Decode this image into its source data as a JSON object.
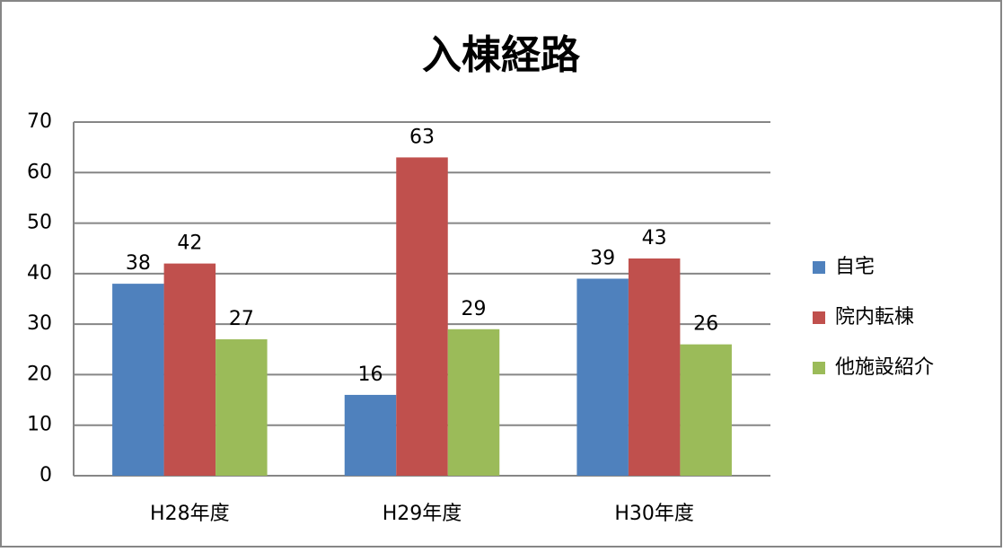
{
  "chart_data": {
    "type": "bar",
    "title": "入棟経路",
    "categories": [
      "H28年度",
      "H29年度",
      "H30年度"
    ],
    "series": [
      {
        "name": "自宅",
        "color": "#4f81bd",
        "values": [
          38,
          16,
          39
        ]
      },
      {
        "name": "院内転棟",
        "color": "#c0504d",
        "values": [
          42,
          63,
          43
        ]
      },
      {
        "name": "他施設紹介",
        "color": "#9bbb59",
        "values": [
          27,
          29,
          26
        ]
      }
    ],
    "ylim": [
      0,
      70
    ],
    "yticks": [
      0,
      10,
      20,
      30,
      40,
      50,
      60,
      70
    ],
    "grid": true,
    "legend": "right"
  }
}
